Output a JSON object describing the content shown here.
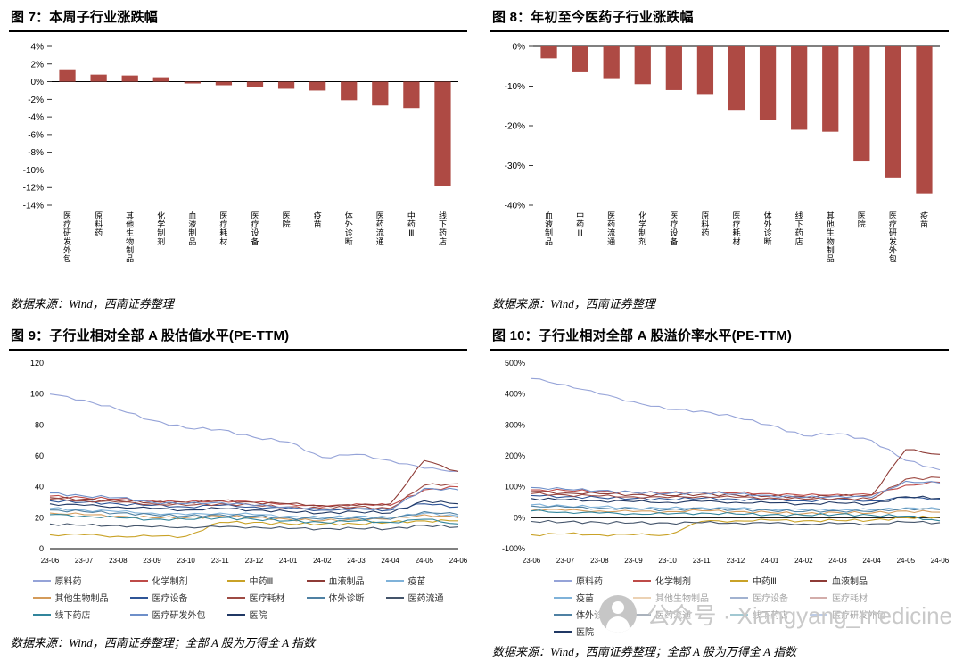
{
  "watermark": {
    "text": "公众号 · Xiangyang_medicine"
  },
  "chart_data": [
    {
      "id": "fig7",
      "type": "bar",
      "title": "图 7：本周子行业涨跌幅",
      "source": "数据来源：Wind，西南证券整理",
      "bar_color": "#AE4A44",
      "ylim": [
        -14,
        4
      ],
      "ytick_step": 2,
      "y_format": "percent_int",
      "categories": [
        "医疗研发外包",
        "原料药",
        "其他生物制品",
        "化学制剂",
        "血液制品",
        "医疗耗材",
        "医疗设备",
        "医院",
        "疫苗",
        "体外诊断",
        "医药流通",
        "中药Ⅲ",
        "线下药店"
      ],
      "values": [
        1.4,
        0.8,
        0.7,
        0.5,
        -0.2,
        -0.4,
        -0.6,
        -0.8,
        -1.0,
        -2.1,
        -2.7,
        -3.0,
        -11.8
      ]
    },
    {
      "id": "fig8",
      "type": "bar",
      "title": "图 8：年初至今医药子行业涨跌幅",
      "source": "数据来源：Wind，西南证券整理",
      "bar_color": "#AE4A44",
      "ylim": [
        -40,
        0
      ],
      "ytick_step": 10,
      "y_format": "percent_int",
      "categories": [
        "血液制品",
        "中药Ⅲ",
        "医药流通",
        "化学制剂",
        "医疗设备",
        "原料药",
        "医疗耗材",
        "体外诊断",
        "线下药店",
        "其他生物制品",
        "医院",
        "医疗研发外包",
        "疫苗"
      ],
      "values": [
        -3,
        -6.5,
        -8,
        -9.5,
        -11,
        -12,
        -16,
        -18.5,
        -21,
        -21.5,
        -29,
        -33,
        -37
      ]
    },
    {
      "id": "fig9",
      "type": "line",
      "title": "图 9：子行业相对全部 A 股估值水平(PE-TTM)",
      "source": "数据来源：Wind，西南证券整理；全部 A 股为万得全 A 指数",
      "ylim": [
        0,
        120
      ],
      "ytick_step": 20,
      "y_format": "int",
      "legend_cols": 5,
      "x": [
        "23-06",
        "23-07",
        "23-08",
        "23-09",
        "23-10",
        "23-11",
        "23-12",
        "24-01",
        "24-02",
        "24-03",
        "24-04",
        "24-05",
        "24-06"
      ],
      "series": [
        {
          "name": "原料药",
          "color": "#95A3D8",
          "values": [
            100,
            96,
            90,
            83,
            78,
            77,
            72,
            69,
            59,
            61,
            57,
            52,
            50
          ]
        },
        {
          "name": "化学制剂",
          "color": "#BE4B48",
          "values": [
            34,
            33,
            32,
            31,
            30,
            31,
            30,
            29,
            27,
            29,
            28,
            38,
            40
          ]
        },
        {
          "name": "中药Ⅲ",
          "color": "#C9A227",
          "values": [
            9,
            9,
            8,
            8,
            8,
            17,
            17,
            16,
            16,
            16,
            17,
            18,
            18
          ]
        },
        {
          "name": "血液制品",
          "color": "#8E3B36",
          "values": [
            33,
            32,
            31,
            30,
            30,
            31,
            30,
            29,
            28,
            28,
            29,
            57,
            50
          ]
        },
        {
          "name": "疫苗",
          "color": "#7FB2D9",
          "values": [
            26,
            25,
            24,
            23,
            22,
            23,
            22,
            21,
            20,
            21,
            20,
            23,
            21
          ]
        },
        {
          "name": "其他生物制品",
          "color": "#D49B5A",
          "values": [
            23,
            22,
            21,
            20,
            20,
            21,
            20,
            19,
            18,
            19,
            19,
            22,
            20
          ]
        },
        {
          "name": "医疗设备",
          "color": "#2F5597",
          "values": [
            31,
            30,
            29,
            28,
            27,
            28,
            27,
            26,
            25,
            26,
            25,
            29,
            27
          ]
        },
        {
          "name": "医疗耗材",
          "color": "#9E4B44",
          "values": [
            32,
            31,
            30,
            29,
            28,
            29,
            28,
            27,
            26,
            27,
            26,
            41,
            42
          ]
        },
        {
          "name": "体外诊断",
          "color": "#4F81A3",
          "values": [
            25,
            24,
            23,
            22,
            21,
            22,
            21,
            20,
            19,
            20,
            19,
            24,
            22
          ]
        },
        {
          "name": "医药流通",
          "color": "#44546A",
          "values": [
            16,
            15,
            15,
            14,
            14,
            14,
            14,
            13,
            13,
            13,
            13,
            15,
            14
          ]
        },
        {
          "name": "线下药店",
          "color": "#31859C",
          "values": [
            22,
            21,
            20,
            19,
            19,
            20,
            19,
            18,
            17,
            18,
            17,
            19,
            16
          ]
        },
        {
          "name": "医疗研发外包",
          "color": "#6E8FC9",
          "values": [
            36,
            34,
            33,
            30,
            29,
            30,
            28,
            27,
            25,
            26,
            25,
            39,
            38
          ]
        },
        {
          "name": "医院",
          "color": "#203864",
          "values": [
            29,
            28,
            27,
            26,
            25,
            26,
            25,
            24,
            23,
            24,
            23,
            31,
            29
          ]
        }
      ]
    },
    {
      "id": "fig10",
      "type": "line",
      "title": "图 10：子行业相对全部 A 股溢价率水平(PE-TTM)",
      "source": "数据来源：Wind，西南证券整理；全部 A 股为万得全 A 指数",
      "ylim": [
        -100,
        500
      ],
      "ytick_step": 100,
      "y_format": "percent_int",
      "legend_cols": 4,
      "x": [
        "23-06",
        "23-07",
        "23-08",
        "23-09",
        "23-10",
        "23-11",
        "23-12",
        "24-01",
        "24-02",
        "24-03",
        "24-04",
        "24-05",
        "24-06"
      ],
      "series": [
        {
          "name": "原料药",
          "color": "#95A3D8",
          "values": [
            450,
            430,
            400,
            375,
            350,
            345,
            325,
            300,
            265,
            272,
            250,
            185,
            155
          ]
        },
        {
          "name": "化学制剂",
          "color": "#BE4B48",
          "values": [
            90,
            88,
            85,
            82,
            80,
            82,
            80,
            78,
            72,
            76,
            74,
            105,
            115
          ]
        },
        {
          "name": "中药Ⅲ",
          "color": "#C9A227",
          "values": [
            -55,
            -52,
            -55,
            -55,
            -55,
            -12,
            -10,
            -8,
            -10,
            -9,
            -8,
            0,
            2
          ]
        },
        {
          "name": "血液制品",
          "color": "#8E3B36",
          "values": [
            85,
            80,
            78,
            75,
            72,
            76,
            73,
            70,
            68,
            70,
            73,
            220,
            205
          ]
        },
        {
          "name": "疫苗",
          "color": "#7FB2D9",
          "values": [
            42,
            38,
            35,
            32,
            30,
            33,
            30,
            28,
            25,
            28,
            25,
            32,
            28
          ]
        },
        {
          "name": "其他生物制品",
          "color": "#D49B5A",
          "values": [
            28,
            24,
            22,
            20,
            20,
            23,
            20,
            17,
            13,
            17,
            15,
            22,
            18
          ]
        },
        {
          "name": "医疗设备",
          "color": "#2F5597",
          "values": [
            72,
            68,
            65,
            62,
            60,
            63,
            60,
            58,
            55,
            58,
            55,
            65,
            60
          ]
        },
        {
          "name": "医疗耗材",
          "color": "#9E4B44",
          "values": [
            78,
            74,
            70,
            68,
            65,
            69,
            66,
            64,
            60,
            63,
            60,
            125,
            130
          ]
        },
        {
          "name": "体外诊断",
          "color": "#4F81A3",
          "values": [
            38,
            34,
            31,
            28,
            26,
            29,
            26,
            24,
            20,
            23,
            20,
            30,
            26
          ]
        },
        {
          "name": "医药流通",
          "color": "#44546A",
          "values": [
            -12,
            -14,
            -15,
            -17,
            -17,
            -16,
            -17,
            -18,
            -20,
            -19,
            -20,
            -14,
            -16
          ]
        },
        {
          "name": "线下药店",
          "color": "#31859C",
          "values": [
            22,
            18,
            15,
            13,
            12,
            15,
            12,
            10,
            8,
            11,
            8,
            5,
            -10
          ]
        },
        {
          "name": "医疗研发外包",
          "color": "#6E8FC9",
          "values": [
            98,
            92,
            88,
            82,
            78,
            82,
            76,
            72,
            65,
            70,
            66,
            118,
            112
          ]
        },
        {
          "name": "医院",
          "color": "#203864",
          "values": [
            62,
            58,
            55,
            52,
            50,
            53,
            50,
            48,
            45,
            48,
            45,
            68,
            63
          ]
        }
      ]
    }
  ]
}
